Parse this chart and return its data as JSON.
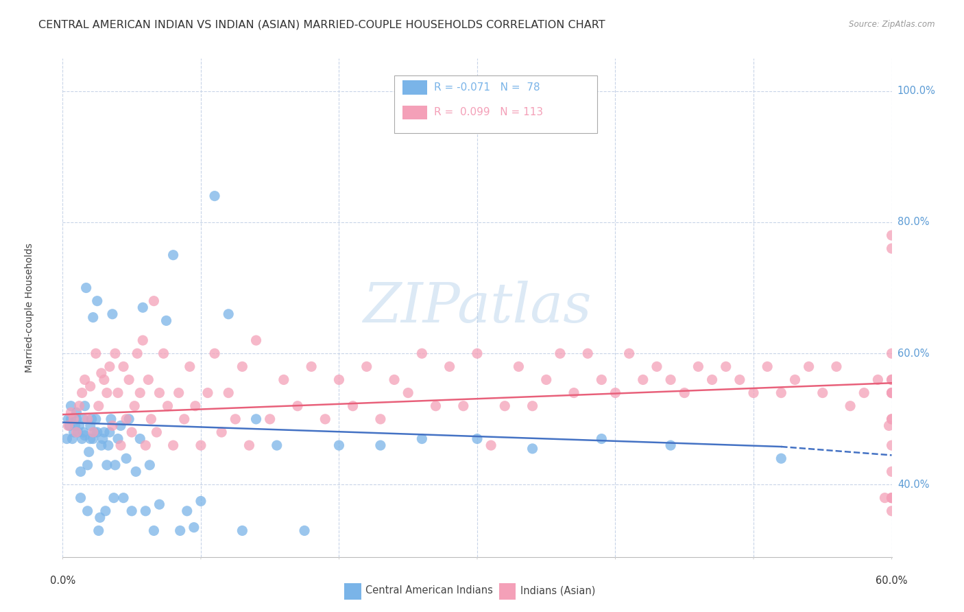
{
  "title": "CENTRAL AMERICAN INDIAN VS INDIAN (ASIAN) MARRIED-COUPLE HOUSEHOLDS CORRELATION CHART",
  "source": "Source: ZipAtlas.com",
  "ylabel": "Married-couple Households",
  "ytick_values": [
    0.4,
    0.6,
    0.8,
    1.0
  ],
  "ytick_labels": [
    "40.0%",
    "60.0%",
    "80.0%",
    "100.0%"
  ],
  "xlim": [
    0.0,
    0.6
  ],
  "ylim": [
    0.29,
    1.05
  ],
  "watermark": "ZIPatlas",
  "blue_scatter_color": "#7ab4e8",
  "pink_scatter_color": "#f4a0b8",
  "blue_line_color": "#4472c4",
  "pink_line_color": "#e8607a",
  "background_color": "#ffffff",
  "grid_color": "#c8d4e8",
  "scatter_size": 120,
  "scatter_alpha": 0.75,
  "title_fontsize": 11.5,
  "axis_label_fontsize": 10,
  "tick_fontsize": 10.5,
  "blue_line": [
    0.0,
    0.495,
    0.52,
    0.458
  ],
  "blue_line_dash": [
    0.52,
    0.458,
    0.6,
    0.445
  ],
  "pink_line": [
    0.0,
    0.507,
    0.6,
    0.555
  ],
  "legend_R_blue": "R = -0.071",
  "legend_N_blue": "N =  78",
  "legend_R_pink": "R =  0.099",
  "legend_N_pink": "N = 113",
  "label_blue": "Central American Indians",
  "label_pink": "Indians (Asian)",
  "blue_x": [
    0.003,
    0.004,
    0.005,
    0.006,
    0.006,
    0.007,
    0.008,
    0.009,
    0.01,
    0.01,
    0.011,
    0.012,
    0.013,
    0.013,
    0.014,
    0.015,
    0.015,
    0.016,
    0.016,
    0.017,
    0.018,
    0.018,
    0.019,
    0.02,
    0.02,
    0.021,
    0.022,
    0.022,
    0.023,
    0.024,
    0.025,
    0.025,
    0.026,
    0.027,
    0.028,
    0.029,
    0.03,
    0.031,
    0.032,
    0.033,
    0.034,
    0.035,
    0.036,
    0.037,
    0.038,
    0.04,
    0.042,
    0.044,
    0.046,
    0.048,
    0.05,
    0.053,
    0.056,
    0.058,
    0.06,
    0.063,
    0.066,
    0.07,
    0.075,
    0.08,
    0.085,
    0.09,
    0.095,
    0.1,
    0.11,
    0.12,
    0.13,
    0.14,
    0.155,
    0.175,
    0.2,
    0.23,
    0.26,
    0.3,
    0.34,
    0.39,
    0.44,
    0.52
  ],
  "blue_y": [
    0.47,
    0.5,
    0.49,
    0.5,
    0.52,
    0.47,
    0.48,
    0.49,
    0.5,
    0.51,
    0.48,
    0.49,
    0.38,
    0.42,
    0.47,
    0.48,
    0.5,
    0.52,
    0.475,
    0.7,
    0.36,
    0.43,
    0.45,
    0.47,
    0.49,
    0.5,
    0.655,
    0.47,
    0.48,
    0.5,
    0.48,
    0.68,
    0.33,
    0.35,
    0.46,
    0.47,
    0.48,
    0.36,
    0.43,
    0.46,
    0.48,
    0.5,
    0.66,
    0.38,
    0.43,
    0.47,
    0.49,
    0.38,
    0.44,
    0.5,
    0.36,
    0.42,
    0.47,
    0.67,
    0.36,
    0.43,
    0.33,
    0.37,
    0.65,
    0.75,
    0.33,
    0.36,
    0.335,
    0.375,
    0.84,
    0.66,
    0.33,
    0.5,
    0.46,
    0.33,
    0.46,
    0.46,
    0.47,
    0.47,
    0.455,
    0.47,
    0.46,
    0.44
  ],
  "pink_x": [
    0.004,
    0.006,
    0.008,
    0.01,
    0.012,
    0.014,
    0.016,
    0.018,
    0.02,
    0.022,
    0.024,
    0.026,
    0.028,
    0.03,
    0.032,
    0.034,
    0.036,
    0.038,
    0.04,
    0.042,
    0.044,
    0.046,
    0.048,
    0.05,
    0.052,
    0.054,
    0.056,
    0.058,
    0.06,
    0.062,
    0.064,
    0.066,
    0.068,
    0.07,
    0.073,
    0.076,
    0.08,
    0.084,
    0.088,
    0.092,
    0.096,
    0.1,
    0.105,
    0.11,
    0.115,
    0.12,
    0.125,
    0.13,
    0.135,
    0.14,
    0.15,
    0.16,
    0.17,
    0.18,
    0.19,
    0.2,
    0.21,
    0.22,
    0.23,
    0.24,
    0.25,
    0.26,
    0.27,
    0.28,
    0.29,
    0.3,
    0.31,
    0.32,
    0.33,
    0.34,
    0.35,
    0.36,
    0.37,
    0.38,
    0.39,
    0.4,
    0.41,
    0.42,
    0.43,
    0.44,
    0.45,
    0.46,
    0.47,
    0.48,
    0.49,
    0.5,
    0.51,
    0.52,
    0.53,
    0.54,
    0.55,
    0.56,
    0.57,
    0.58,
    0.59,
    0.595,
    0.598,
    0.6,
    0.6,
    0.6,
    0.6,
    0.6,
    0.6,
    0.6,
    0.6,
    0.6,
    0.6,
    0.6,
    0.6,
    0.6,
    0.6,
    0.6,
    0.6
  ],
  "pink_y": [
    0.49,
    0.51,
    0.5,
    0.48,
    0.52,
    0.54,
    0.56,
    0.5,
    0.55,
    0.48,
    0.6,
    0.52,
    0.57,
    0.56,
    0.54,
    0.58,
    0.49,
    0.6,
    0.54,
    0.46,
    0.58,
    0.5,
    0.56,
    0.48,
    0.52,
    0.6,
    0.54,
    0.62,
    0.46,
    0.56,
    0.5,
    0.68,
    0.48,
    0.54,
    0.6,
    0.52,
    0.46,
    0.54,
    0.5,
    0.58,
    0.52,
    0.46,
    0.54,
    0.6,
    0.48,
    0.54,
    0.5,
    0.58,
    0.46,
    0.62,
    0.5,
    0.56,
    0.52,
    0.58,
    0.5,
    0.56,
    0.52,
    0.58,
    0.5,
    0.56,
    0.54,
    0.6,
    0.52,
    0.58,
    0.52,
    0.6,
    0.46,
    0.52,
    0.58,
    0.52,
    0.56,
    0.6,
    0.54,
    0.6,
    0.56,
    0.54,
    0.6,
    0.56,
    0.58,
    0.56,
    0.54,
    0.58,
    0.56,
    0.58,
    0.56,
    0.54,
    0.58,
    0.54,
    0.56,
    0.58,
    0.54,
    0.58,
    0.52,
    0.54,
    0.56,
    0.38,
    0.49,
    0.54,
    0.46,
    0.5,
    0.56,
    0.38,
    0.42,
    0.38,
    0.54,
    0.38,
    0.78,
    0.76,
    0.54,
    0.36,
    0.5,
    0.56,
    0.6
  ]
}
